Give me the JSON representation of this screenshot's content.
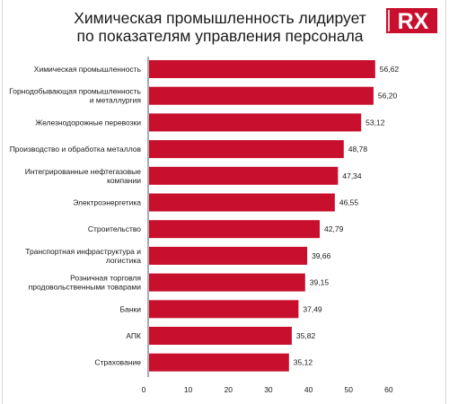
{
  "header": {
    "title_line1": "Химическая промышленность лидирует",
    "title_line2": "по показателям управления персонала",
    "logo_text": "RX"
  },
  "colors": {
    "bar": "#c8102e",
    "logo_bg": "#c8102e",
    "axis": "#555555",
    "text": "#1a1a1a"
  },
  "chart_data": {
    "type": "bar",
    "orientation": "horizontal",
    "title": "Химическая промышленность лидирует по показателям управления персонала",
    "categories": [
      [
        "Химическая промышленность"
      ],
      [
        "Горнодобывающая промышленность",
        "и металлургия"
      ],
      [
        "Железнодорожные перевозки"
      ],
      [
        "Производство и обработка металлов"
      ],
      [
        "Интегрированные нефтегазовые",
        "компании"
      ],
      [
        "Электроэнергетика"
      ],
      [
        "Строительство"
      ],
      [
        "Транспортная инфраструктура и",
        "логистика"
      ],
      [
        "Розничная торговля",
        "продовольственными товарами"
      ],
      [
        "Банки"
      ],
      [
        "АПК"
      ],
      [
        "Страхование"
      ]
    ],
    "values": [
      56.62,
      56.2,
      53.12,
      48.78,
      47.34,
      46.55,
      42.79,
      39.66,
      39.15,
      37.49,
      35.82,
      35.12
    ],
    "value_labels": [
      "56,62",
      "56,20",
      "53,12",
      "48,78",
      "47,34",
      "46,55",
      "42,79",
      "39,66",
      "39,15",
      "37,49",
      "35,82",
      "35,12"
    ],
    "xlim": [
      0,
      60
    ],
    "xticks": [
      0,
      10,
      20,
      30,
      40,
      50,
      60
    ],
    "grid": false,
    "legend": "none"
  }
}
